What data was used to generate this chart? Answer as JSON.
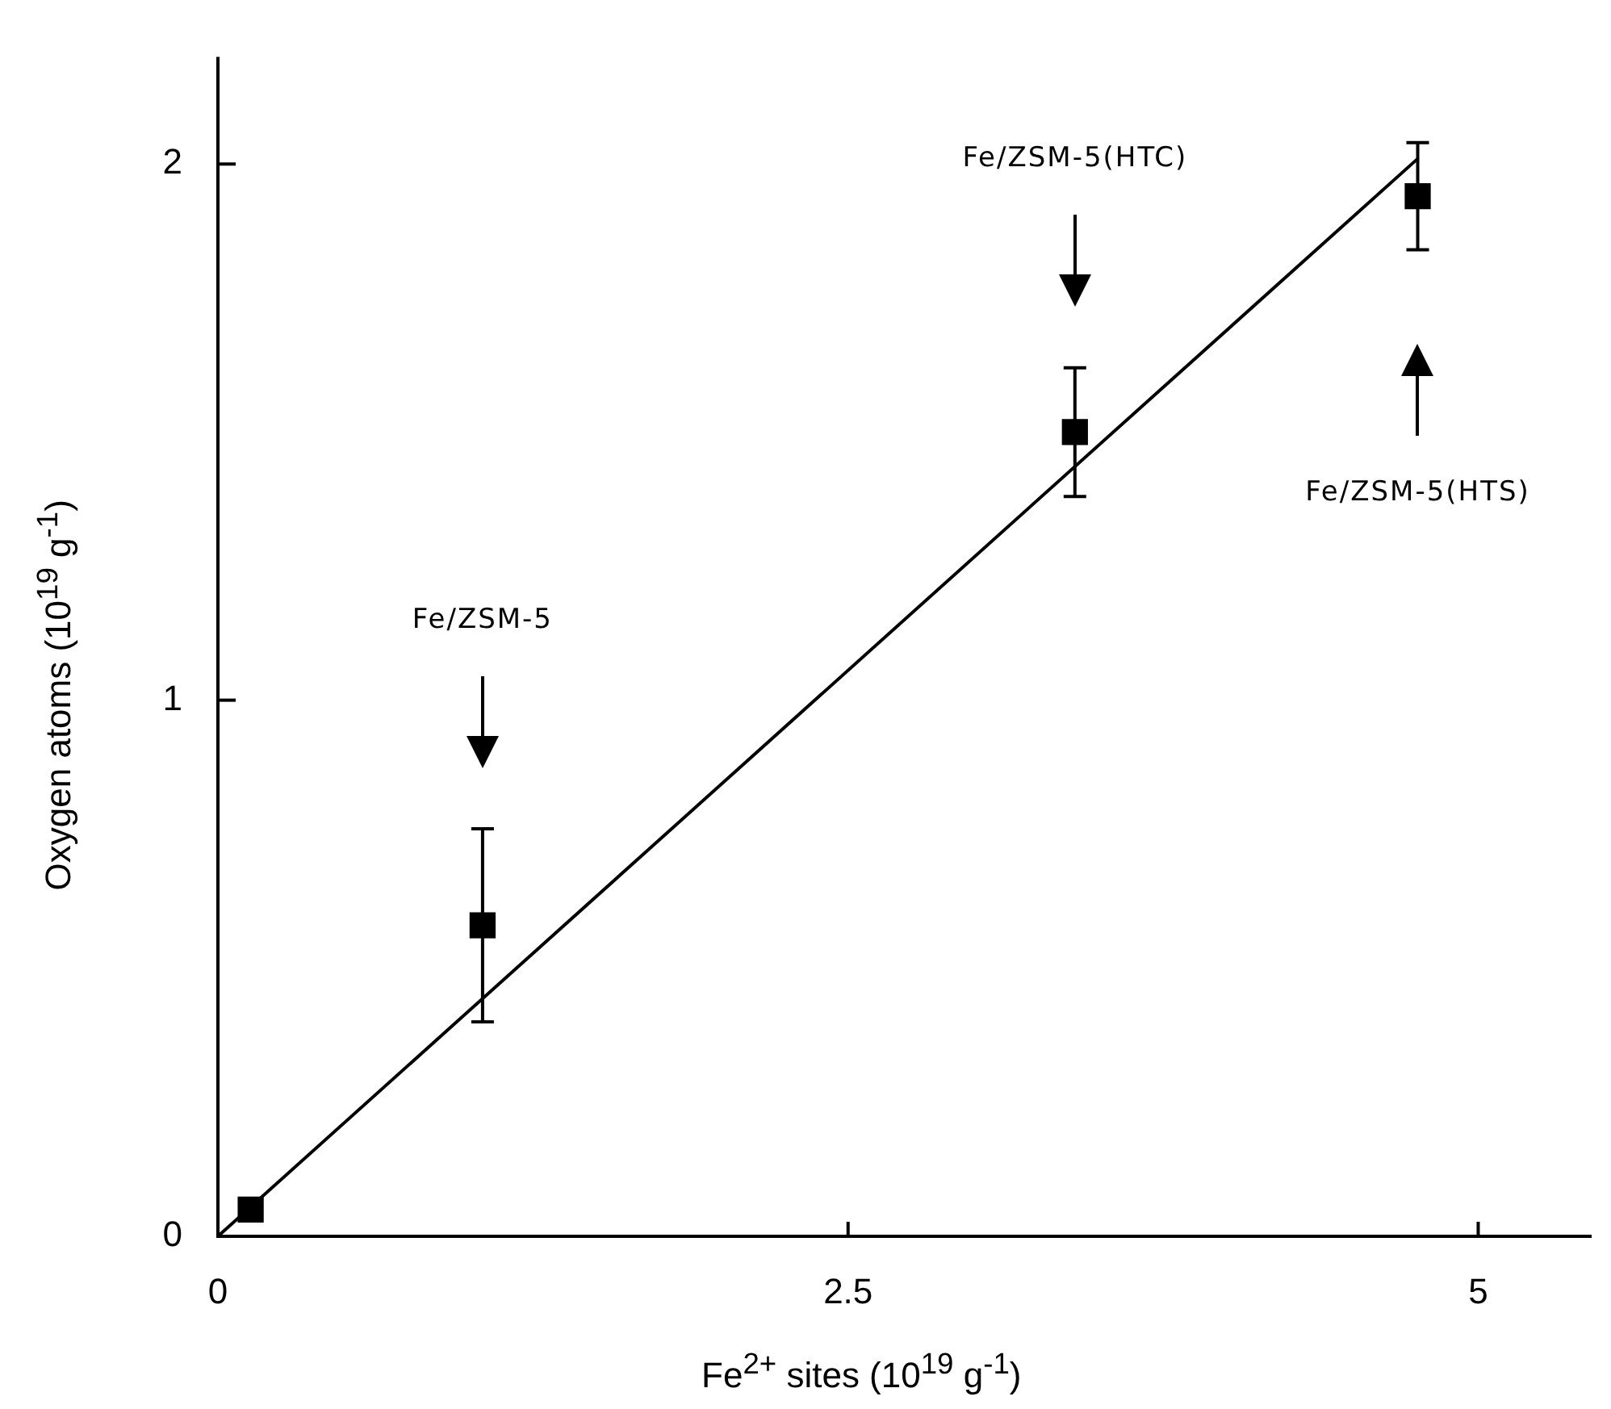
{
  "chart_data": {
    "type": "scatter",
    "xlabel": "Fe$^{2+}$ sites (10$^{19}$ g$^{-1}$)",
    "ylabel": "Oxygen atoms (10$^{19}$ g$^{-1}$)",
    "xlim": [
      0,
      5.45
    ],
    "xticks": [
      0,
      2.5,
      5
    ],
    "ylim": [
      0,
      2.2
    ],
    "yticks": [
      0,
      1,
      2
    ],
    "grid": false,
    "legend": false,
    "series": [
      {
        "color": "#000000",
        "marker": "square",
        "x": [
          0.13,
          1.05,
          3.4,
          4.76
        ],
        "values": [
          0.05,
          0.58,
          1.5,
          1.94
        ],
        "errors": [
          null,
          [
            0.4,
            0.76
          ],
          [
            1.38,
            1.62
          ],
          [
            1.84,
            2.04
          ]
        ]
      },
      {
        "type": "line",
        "color": "#000000",
        "marker": "none",
        "line_style": "solid",
        "x": [
          0,
          4.76
        ],
        "values": [
          0,
          2.01
        ]
      }
    ],
    "annotations": [
      "Fe/ZSM-5",
      "Fe/ZSM-5(HTC)",
      "Fe/ZSM-5(HTS)"
    ]
  }
}
